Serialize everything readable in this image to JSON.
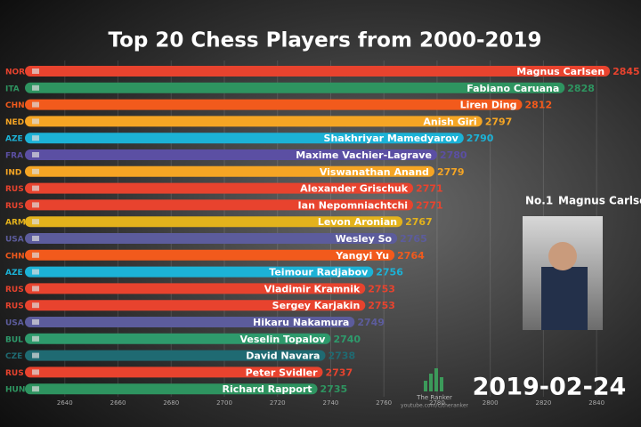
{
  "chart_data": {
    "type": "bar",
    "orientation": "horizontal",
    "title": "Top 20 Chess Players from 2000-2019",
    "categories": [
      "Magnus Carlsen",
      "Fabiano Caruana",
      "Liren Ding",
      "Anish Giri",
      "Shakhriyar Mamedyarov",
      "Maxime Vachier-Lagrave",
      "Viswanathan Anand",
      "Alexander Grischuk",
      "Ian Nepomniachtchi",
      "Levon Aronian",
      "Wesley So",
      "Yangyi Yu",
      "Teimour Radjabov",
      "Vladimir Kramnik",
      "Sergey Karjakin",
      "Hikaru Nakamura",
      "Veselin Topalov",
      "David Navara",
      "Peter Svidler",
      "Richard Rapport"
    ],
    "countries": [
      "NOR",
      "ITA",
      "CHN",
      "NED",
      "AZE",
      "FRA",
      "IND",
      "RUS",
      "RUS",
      "ARM",
      "USA",
      "CHN",
      "AZE",
      "RUS",
      "RUS",
      "USA",
      "BUL",
      "CZE",
      "RUS",
      "HUN"
    ],
    "values": [
      2845,
      2828,
      2812,
      2797,
      2790,
      2780,
      2779,
      2771,
      2771,
      2767,
      2765,
      2764,
      2756,
      2753,
      2753,
      2749,
      2740,
      2738,
      2737,
      2735
    ],
    "colors": [
      "#e8432e",
      "#2e9460",
      "#f25a1c",
      "#f5a524",
      "#1cb2d6",
      "#5b4fa3",
      "#f5a524",
      "#e8432e",
      "#e8432e",
      "#e3b21c",
      "#5c5c9c",
      "#f25a1c",
      "#1cb2d6",
      "#e8432e",
      "#e8432e",
      "#5c5c9c",
      "#2e9a6c",
      "#1f6a72",
      "#e8432e",
      "#2e9460"
    ],
    "xlim": [
      2625,
      2850
    ],
    "xticks": [
      2640,
      2660,
      2680,
      2700,
      2720,
      2740,
      2760,
      2780,
      2800,
      2820,
      2840
    ],
    "date": "2019-02-24",
    "leader_rank": "No.1",
    "leader_name": "Magnus Carlsen",
    "brand": "The Ranker",
    "brand_url": "youtube.com/c/theranker"
  }
}
